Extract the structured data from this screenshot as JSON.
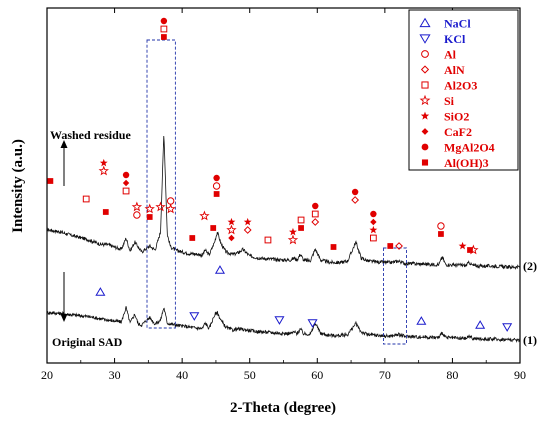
{
  "chart_data": {
    "type": "line",
    "title": "",
    "xlabel": "2-Theta (degree)",
    "ylabel": "Intensity (a.u.)",
    "xlim": [
      20,
      90
    ],
    "xticks": [
      20,
      30,
      40,
      50,
      60,
      70,
      80,
      90
    ],
    "yticks": "none",
    "grid": false,
    "legend": {
      "placement": "top-right",
      "entries": [
        {
          "label": "NaCl",
          "marker": "triangle-up",
          "color": "#1a1acc"
        },
        {
          "label": "KCl",
          "marker": "triangle-down",
          "color": "#1a1acc"
        },
        {
          "label": "Al",
          "marker": "circle-open",
          "color": "#e00000"
        },
        {
          "label": "AlN",
          "marker": "diamond-open",
          "color": "#e00000"
        },
        {
          "label": "Al2O3",
          "marker": "square-open",
          "color": "#e00000"
        },
        {
          "label": "Si",
          "marker": "star-open",
          "color": "#e00000"
        },
        {
          "label": "SiO2",
          "marker": "star-filled",
          "color": "#e00000"
        },
        {
          "label": "CaF2",
          "marker": "diamond-filled",
          "color": "#e00000"
        },
        {
          "label": "MgAl2O4",
          "marker": "circle-filled",
          "color": "#e00000"
        },
        {
          "label": "Al(OH)3",
          "marker": "square-filled",
          "color": "#e00000"
        }
      ]
    },
    "series": [
      {
        "name": "Washed residue",
        "curve_label": "(2)",
        "x": [
          20,
          22,
          24,
          26,
          27,
          28,
          29,
          30,
          31,
          31.7,
          32.3,
          33,
          34,
          35.2,
          36,
          36.8,
          37.3,
          37.8,
          38.3,
          39,
          40,
          41,
          42,
          43,
          43.4,
          44,
          44.8,
          45.2,
          45.8,
          46.5,
          47.5,
          48.2,
          49,
          50,
          51,
          52,
          53,
          54,
          55,
          56,
          56.6,
          57,
          57.5,
          58,
          59,
          59.7,
          60.5,
          61.5,
          62.5,
          63.5,
          64.5,
          65.7,
          66.5,
          67.5,
          68.2,
          69,
          70,
          71,
          72,
          73,
          74,
          75,
          76,
          77,
          78,
          78.5,
          79,
          80,
          81,
          82,
          82.5,
          83,
          84,
          85,
          86,
          87,
          88,
          89,
          90
        ],
        "y": [
          85,
          80,
          72,
          65,
          60,
          55,
          55,
          50,
          45,
          68,
          42,
          60,
          40,
          52,
          44,
          80,
          280,
          75,
          50,
          44,
          40,
          37,
          36,
          34,
          44,
          34,
          60,
          80,
          55,
          40,
          35,
          38,
          45,
          32,
          29,
          27,
          26,
          25,
          24,
          24,
          28,
          24,
          36,
          23,
          23,
          46,
          24,
          20,
          19,
          19,
          22,
          60,
          28,
          22,
          21,
          20,
          19,
          19,
          22,
          17,
          17,
          16,
          16,
          15,
          15,
          30,
          15,
          14,
          14,
          13,
          19,
          13,
          12,
          12,
          12,
          11,
          10,
          10,
          10
        ]
      },
      {
        "name": "Original SAD",
        "curve_label": "(1)",
        "x": [
          20,
          22,
          24,
          26,
          27,
          28,
          29,
          30,
          31,
          31.7,
          32.3,
          33,
          33.5,
          34,
          35.2,
          36,
          36.8,
          37.3,
          37.8,
          38.3,
          39,
          40,
          41,
          42,
          43,
          43.4,
          44,
          44.8,
          45.2,
          45.8,
          46.5,
          47.5,
          48.2,
          49,
          50,
          51,
          52,
          53,
          54,
          55,
          56,
          56.6,
          57,
          57.5,
          58,
          59,
          59.7,
          60.5,
          61.5,
          62.5,
          63.5,
          64.5,
          65.7,
          66.5,
          67.5,
          68.2,
          69,
          70,
          71,
          72,
          73,
          74,
          75,
          76,
          77,
          78,
          78.5,
          79,
          80,
          81,
          82,
          82.5,
          83,
          84,
          85,
          86,
          87,
          88,
          89,
          90
        ],
        "y": [
          65,
          63,
          60,
          57,
          55,
          52,
          50,
          48,
          46,
          75,
          44,
          62,
          42,
          40,
          55,
          42,
          50,
          75,
          44,
          42,
          40,
          38,
          36,
          34,
          33,
          44,
          33,
          60,
          65,
          48,
          35,
          30,
          32,
          31,
          29,
          27,
          26,
          25,
          24,
          23,
          23,
          26,
          23,
          32,
          22,
          22,
          44,
          23,
          20,
          19,
          19,
          21,
          43,
          26,
          21,
          20,
          19,
          18,
          18,
          21,
          17,
          17,
          16,
          16,
          15,
          15,
          25,
          15,
          14,
          13,
          13,
          18,
          13,
          12,
          12,
          12,
          11,
          11,
          10,
          10
        ]
      }
    ],
    "annotations": [
      {
        "text": "Washed residue",
        "arrow": "up",
        "at_x": 23
      },
      {
        "text": "Original SAD",
        "arrow": "down",
        "at_x": 23
      },
      {
        "text": "dashed box",
        "x_range": [
          34.8,
          39.0
        ]
      },
      {
        "text": "dashed box",
        "x_range": [
          69.8,
          73.2
        ]
      }
    ]
  }
}
